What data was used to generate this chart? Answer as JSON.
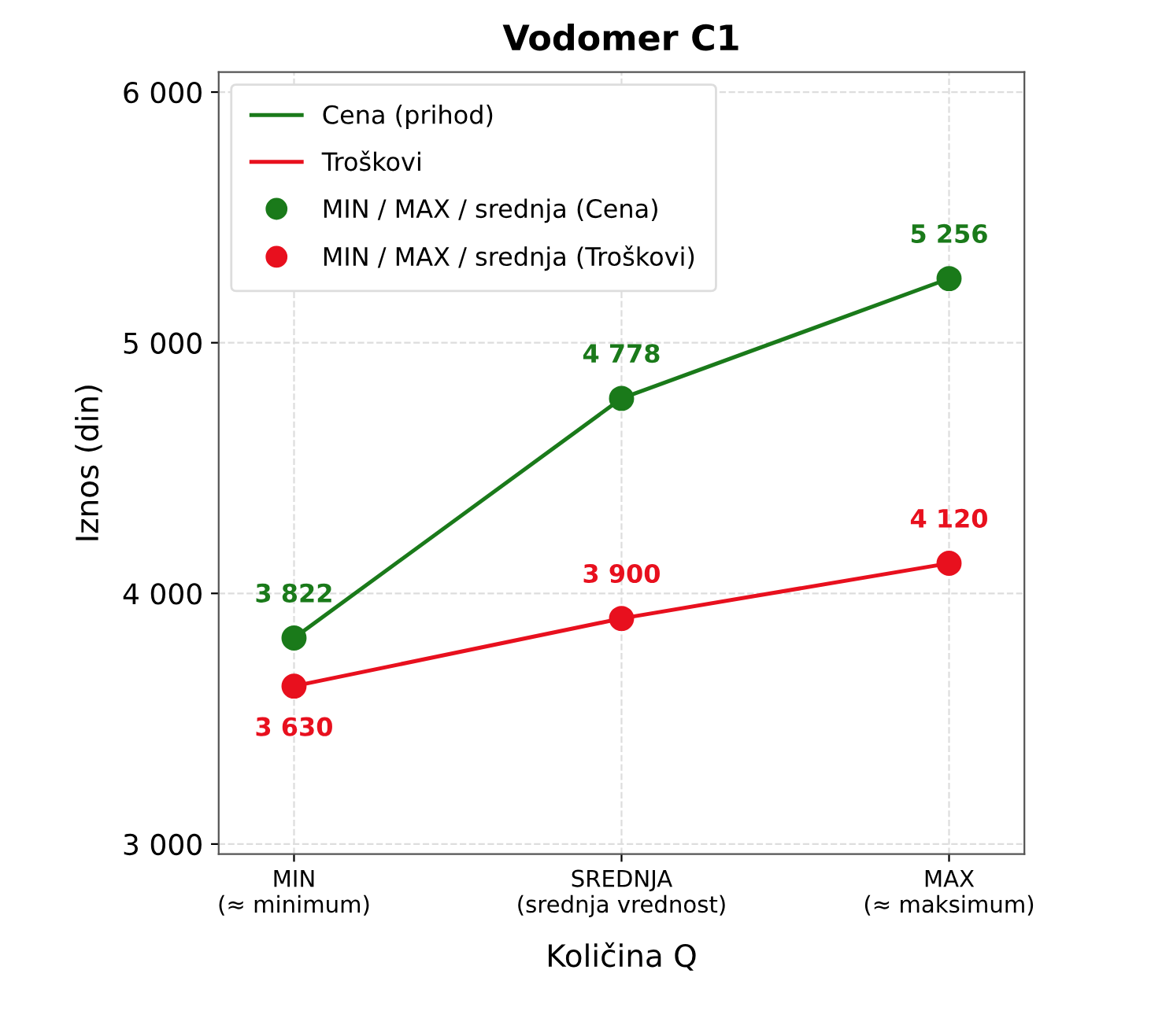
{
  "chart_data": {
    "type": "line",
    "title": "Vodomer C1",
    "xlabel": "Količina Q",
    "ylabel": "Iznos (din)",
    "categories": [
      "MIN\n(≈ minimum)",
      "SREDNJA\n(srednja vrednost)",
      "MAX\n(≈ maksimum)"
    ],
    "series": [
      {
        "name": "Cena (prihod)",
        "marker": "none",
        "color": "#1a7a1a",
        "values": [
          3822,
          4778,
          5256
        ]
      },
      {
        "name": "Troškovi",
        "marker": "none",
        "color": "#e8101e",
        "values": [
          3630,
          3900,
          4120
        ]
      },
      {
        "name": "MIN / MAX / srednja (Cena)",
        "type": "scatter",
        "marker": "circle",
        "color": "#1a7a1a",
        "values": [
          3822,
          4778,
          5256
        ],
        "value_labels": [
          "3 822",
          "4 778",
          "5 256"
        ]
      },
      {
        "name": "MIN / MAX / srednja (Troškovi)",
        "type": "scatter",
        "marker": "circle",
        "color": "#e8101e",
        "values": [
          3630,
          3900,
          4120
        ],
        "value_labels": [
          "3 630",
          "3 900",
          "4 120"
        ]
      }
    ],
    "ylim": [
      2960,
      6080
    ],
    "yticks": [
      {
        "value": 3000,
        "label": "3 000"
      },
      {
        "value": 4000,
        "label": "4 000"
      },
      {
        "value": 5000,
        "label": "5 000"
      },
      {
        "value": 6000,
        "label": "6 000"
      }
    ],
    "grid": true,
    "legend": "top left",
    "line_style": "solid"
  }
}
